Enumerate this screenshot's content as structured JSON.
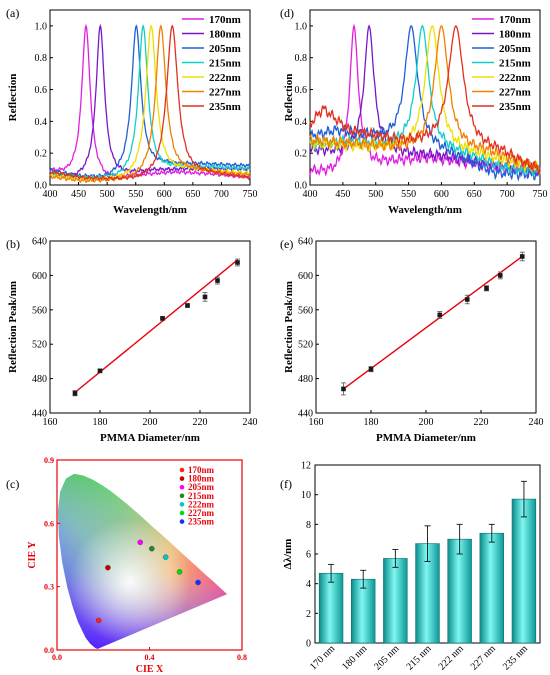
{
  "panels": [
    "(a)",
    "(b)",
    "(c)",
    "(d)",
    "(e)",
    "(f)"
  ],
  "chart_data": [
    {
      "id": "a",
      "type": "line",
      "xlabel": "Wavelength/nm",
      "ylabel": "Reflection",
      "xlim": [
        400,
        750
      ],
      "ylim": [
        0,
        1.1
      ],
      "xticks": [
        400,
        450,
        500,
        550,
        600,
        650,
        700,
        750
      ],
      "yticks": [
        0.0,
        0.2,
        0.4,
        0.6,
        0.8,
        1.0
      ],
      "legend_position": "top-right",
      "series": [
        {
          "name": "170nm",
          "color": "#e020e0",
          "peak": 463,
          "width": 9,
          "baseline": [
            [
              400,
              0.08
            ],
            [
              430,
              0.05
            ],
            [
              500,
              0.02
            ],
            [
              560,
              0.06
            ],
            [
              620,
              0.08
            ],
            [
              680,
              0.07
            ],
            [
              750,
              0.05
            ]
          ]
        },
        {
          "name": "180nm",
          "color": "#7a16c8",
          "peak": 488,
          "width": 9,
          "baseline": [
            [
              400,
              0.06
            ],
            [
              440,
              0.03
            ],
            [
              520,
              0.05
            ],
            [
              580,
              0.09
            ],
            [
              640,
              0.1
            ],
            [
              750,
              0.1
            ]
          ]
        },
        {
          "name": "205nm",
          "color": "#1f5fd6",
          "peak": 551,
          "width": 10,
          "baseline": [
            [
              400,
              0.09
            ],
            [
              450,
              0.05
            ],
            [
              500,
              0.03
            ],
            [
              600,
              0.12
            ],
            [
              660,
              0.13
            ],
            [
              750,
              0.12
            ]
          ]
        },
        {
          "name": "215nm",
          "color": "#10cfc8",
          "peak": 563,
          "width": 10,
          "baseline": [
            [
              400,
              0.07
            ],
            [
              460,
              0.04
            ],
            [
              520,
              0.03
            ],
            [
              620,
              0.1
            ],
            [
              680,
              0.11
            ],
            [
              750,
              0.1
            ]
          ]
        },
        {
          "name": "222nm",
          "color": "#f0e000",
          "peak": 577,
          "width": 11,
          "baseline": [
            [
              400,
              0.06
            ],
            [
              460,
              0.03
            ],
            [
              540,
              0.02
            ],
            [
              640,
              0.09
            ],
            [
              700,
              0.08
            ],
            [
              750,
              0.07
            ]
          ]
        },
        {
          "name": "227nm",
          "color": "#f08000",
          "peak": 594,
          "width": 11,
          "baseline": [
            [
              400,
              0.05
            ],
            [
              460,
              0.02
            ],
            [
              540,
              0.02
            ],
            [
              650,
              0.08
            ],
            [
              700,
              0.07
            ],
            [
              750,
              0.06
            ]
          ]
        },
        {
          "name": "235nm",
          "color": "#e03020",
          "peak": 614,
          "width": 12,
          "baseline": [
            [
              400,
              0.08
            ],
            [
              460,
              0.04
            ],
            [
              560,
              0.02
            ],
            [
              670,
              0.06
            ],
            [
              720,
              0.05
            ],
            [
              750,
              0.04
            ]
          ]
        }
      ]
    },
    {
      "id": "b",
      "type": "scatter",
      "xlabel": "PMMA Diameter/nm",
      "ylabel": "Reflection Peak/nm",
      "xlim": [
        160,
        240
      ],
      "ylim": [
        440,
        640
      ],
      "xticks": [
        160,
        180,
        200,
        220,
        240
      ],
      "yticks": [
        440,
        480,
        520,
        560,
        600,
        640
      ],
      "x": [
        170,
        180,
        205,
        215,
        222,
        227,
        235
      ],
      "y": [
        463,
        489,
        550,
        565,
        575,
        594,
        615
      ],
      "err": [
        3,
        2,
        2,
        2,
        5,
        4,
        4
      ],
      "fit": {
        "color": "#e8000b",
        "x": [
          170,
          235
        ],
        "y": [
          464,
          618
        ]
      }
    },
    {
      "id": "c",
      "type": "scatter",
      "xlabel": "CIE X",
      "ylabel": "CIE Y",
      "xlim": [
        0,
        0.8
      ],
      "ylim": [
        0,
        0.9
      ],
      "xticks": [
        0.0,
        0.4,
        0.8
      ],
      "yticks": [
        0.0,
        0.3,
        0.6,
        0.9
      ],
      "legend_position": "top-right",
      "series": [
        {
          "name": "170nm",
          "color": "#ff2020",
          "x": 0.18,
          "y": 0.14
        },
        {
          "name": "180nm",
          "color": "#c00000",
          "x": 0.22,
          "y": 0.39
        },
        {
          "name": "205nm",
          "color": "#ff00ff",
          "x": 0.36,
          "y": 0.51
        },
        {
          "name": "215nm",
          "color": "#228822",
          "x": 0.41,
          "y": 0.48
        },
        {
          "name": "222nm",
          "color": "#00c8c8",
          "x": 0.47,
          "y": 0.44
        },
        {
          "name": "227nm",
          "color": "#00dd00",
          "x": 0.53,
          "y": 0.37
        },
        {
          "name": "235nm",
          "color": "#1030ff",
          "x": 0.61,
          "y": 0.32
        }
      ]
    },
    {
      "id": "d",
      "type": "line",
      "xlabel": "Wavelength/nm",
      "ylabel": "Reflection",
      "xlim": [
        400,
        750
      ],
      "ylim": [
        0,
        1.1
      ],
      "xticks": [
        400,
        450,
        500,
        550,
        600,
        650,
        700,
        750
      ],
      "yticks": [
        0.0,
        0.2,
        0.4,
        0.6,
        0.8,
        1.0
      ],
      "legend_position": "top-right",
      "series": [
        {
          "name": "170nm",
          "color": "#e020e0",
          "peak": 467,
          "width": 8,
          "baseline": [
            [
              400,
              0.08
            ],
            [
              440,
              0.06
            ],
            [
              520,
              0.14
            ],
            [
              580,
              0.17
            ],
            [
              640,
              0.14
            ],
            [
              700,
              0.1
            ],
            [
              750,
              0.08
            ]
          ]
        },
        {
          "name": "180nm",
          "color": "#7a16c8",
          "peak": 490,
          "width": 9,
          "baseline": [
            [
              400,
              0.22
            ],
            [
              440,
              0.2
            ],
            [
              520,
              0.2
            ],
            [
              600,
              0.18
            ],
            [
              660,
              0.14
            ],
            [
              750,
              0.1
            ]
          ]
        },
        {
          "name": "205nm",
          "color": "#1f5fd6",
          "peak": 554,
          "width": 12,
          "baseline": [
            [
              400,
              0.3
            ],
            [
              440,
              0.34
            ],
            [
              490,
              0.3
            ],
            [
              620,
              0.18
            ],
            [
              680,
              0.07
            ],
            [
              750,
              0.06
            ]
          ]
        },
        {
          "name": "215nm",
          "color": "#10cfc8",
          "peak": 571,
          "width": 12,
          "baseline": [
            [
              400,
              0.25
            ],
            [
              460,
              0.27
            ],
            [
              520,
              0.24
            ],
            [
              640,
              0.18
            ],
            [
              700,
              0.1
            ],
            [
              750,
              0.08
            ]
          ]
        },
        {
          "name": "222nm",
          "color": "#f0e000",
          "peak": 586,
          "width": 13,
          "baseline": [
            [
              400,
              0.26
            ],
            [
              460,
              0.24
            ],
            [
              540,
              0.22
            ],
            [
              660,
              0.18
            ],
            [
              720,
              0.12
            ],
            [
              750,
              0.1
            ]
          ]
        },
        {
          "name": "227nm",
          "color": "#f08000",
          "peak": 600,
          "width": 13,
          "baseline": [
            [
              400,
              0.28
            ],
            [
              460,
              0.26
            ],
            [
              540,
              0.22
            ],
            [
              670,
              0.2
            ],
            [
              720,
              0.14
            ],
            [
              750,
              0.1
            ]
          ]
        },
        {
          "name": "235nm",
          "color": "#e03020",
          "peak": 622,
          "width": 14,
          "baseline": [
            [
              400,
              0.38
            ],
            [
              420,
              0.48
            ],
            [
              460,
              0.34
            ],
            [
              540,
              0.27
            ],
            [
              690,
              0.2
            ],
            [
              730,
              0.12
            ],
            [
              750,
              0.09
            ]
          ]
        }
      ]
    },
    {
      "id": "e",
      "type": "scatter",
      "xlabel": "PMMA Diameter/nm",
      "ylabel": "Reflection Peak/nm",
      "xlim": [
        160,
        240
      ],
      "ylim": [
        440,
        640
      ],
      "xticks": [
        160,
        180,
        200,
        220,
        240
      ],
      "yticks": [
        440,
        480,
        520,
        560,
        600,
        640
      ],
      "x": [
        170,
        180,
        205,
        215,
        222,
        227,
        235
      ],
      "y": [
        468,
        491,
        554,
        572,
        585,
        600,
        622
      ],
      "err": [
        7,
        3,
        4,
        5,
        3,
        4,
        5
      ],
      "fit": {
        "color": "#e8000b",
        "x": [
          170,
          235
        ],
        "y": [
          468,
          622
        ]
      }
    },
    {
      "id": "f",
      "type": "bar",
      "xlabel": "",
      "ylabel": "Δλ/nm",
      "categories": [
        "170 nm",
        "180 nm",
        "205 nm",
        "215 nm",
        "222 nm",
        "227 nm",
        "235 nm"
      ],
      "values": [
        4.7,
        4.3,
        5.7,
        6.7,
        7.0,
        7.4,
        9.7
      ],
      "err": [
        0.6,
        0.6,
        0.6,
        1.2,
        1.0,
        0.6,
        1.2
      ],
      "ylim": [
        0,
        12
      ],
      "yticks": [
        0,
        2,
        4,
        6,
        8,
        10,
        12
      ],
      "color": "#19c9c6"
    }
  ]
}
